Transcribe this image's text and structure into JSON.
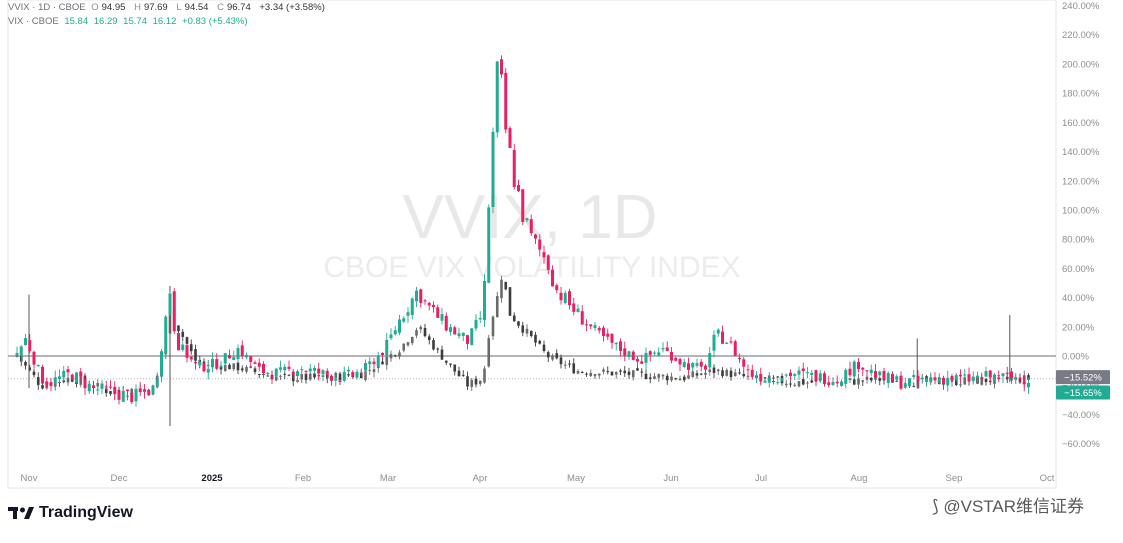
{
  "legend": {
    "vvix": {
      "name": "VVIX · 1D · CBOE",
      "o_label": "O",
      "o": "94.95",
      "h_label": "H",
      "h": "97.69",
      "l_label": "L",
      "l": "94.54",
      "c_label": "C",
      "c": "96.74",
      "change": "+3.34 (+3.58%)"
    },
    "vix": {
      "name": "VIX · CBOE",
      "o": "15.84",
      "h": "16.29",
      "l": "15.74",
      "c": "16.12",
      "change": "+0.83 (+5.43%)"
    }
  },
  "watermark": {
    "symbol": "VVIX, 1D",
    "description": "CBOE VIX VOLATILITY INDEX"
  },
  "price_tags": {
    "vvix": "−15.52%",
    "vix": "−15.65%"
  },
  "brand": {
    "name": "TradingView"
  },
  "social_handle": "@VSTAR维信证券",
  "colors": {
    "up": "#22ab94",
    "down": "#e91e63",
    "vix_up": "#6a6a6a",
    "vix_down": "#3c3c3c",
    "tag_vvix": "#787b86",
    "tag_vix": "#22ab94",
    "zero_line": "#888888"
  },
  "chart_data": {
    "type": "candlestick",
    "y_axis": {
      "unit": "%",
      "range": [
        -75,
        245
      ],
      "ticks": [
        "240.00%",
        "220.00%",
        "200.00%",
        "180.00%",
        "160.00%",
        "140.00%",
        "120.00%",
        "100.00%",
        "80.00%",
        "60.00%",
        "40.00%",
        "20.00%",
        "0.00%",
        "−20.00%",
        "−40.00%",
        "−60.00%"
      ]
    },
    "x_axis": {
      "labels": [
        "Nov",
        "Dec",
        "2025",
        "Feb",
        "Mar",
        "Apr",
        "May",
        "Jun",
        "Jul",
        "Aug",
        "Sep",
        "Oct"
      ]
    },
    "series": [
      {
        "name": "VVIX",
        "style": "pink/green candles",
        "close_points": [
          [
            "Oct 28",
            2
          ],
          [
            "Oct 31",
            12
          ],
          [
            "Nov 5",
            -15
          ],
          [
            "Nov 8",
            -18
          ],
          [
            "Nov 15",
            -12
          ],
          [
            "Nov 22",
            -22
          ],
          [
            "Nov 29",
            -25
          ],
          [
            "Dec 6",
            -28
          ],
          [
            "Dec 13",
            -22
          ],
          [
            "Dec 18",
            45
          ],
          [
            "Dec 20",
            10
          ],
          [
            "Dec 27",
            -8
          ],
          [
            "Jan 3",
            -5
          ],
          [
            "Jan 10",
            5
          ],
          [
            "Jan 17",
            -10
          ],
          [
            "Jan 24",
            -12
          ],
          [
            "Jan 31",
            -8
          ],
          [
            "Feb 7",
            -12
          ],
          [
            "Feb 14",
            -15
          ],
          [
            "Feb 21",
            -10
          ],
          [
            "Feb 28",
            5
          ],
          [
            "Mar 5",
            25
          ],
          [
            "Mar 11",
            45
          ],
          [
            "Mar 14",
            35
          ],
          [
            "Mar 21",
            20
          ],
          [
            "Mar 28",
            10
          ],
          [
            "Apr 2",
            30
          ],
          [
            "Apr 4",
            115
          ],
          [
            "Apr 7",
            210
          ],
          [
            "Apr 8",
            170
          ],
          [
            "Apr 10",
            140
          ],
          [
            "Apr 14",
            100
          ],
          [
            "Apr 17",
            80
          ],
          [
            "Apr 22",
            65
          ],
          [
            "Apr 25",
            45
          ],
          [
            "May 1",
            30
          ],
          [
            "May 8",
            15
          ],
          [
            "May 15",
            5
          ],
          [
            "May 22",
            -3
          ],
          [
            "May 29",
            5
          ],
          [
            "Jun 5",
            -5
          ],
          [
            "Jun 12",
            -10
          ],
          [
            "Jun 16",
            15
          ],
          [
            "Jun 20",
            10
          ],
          [
            "Jun 27",
            -12
          ],
          [
            "Jul 3",
            -15
          ],
          [
            "Jul 11",
            -12
          ],
          [
            "Jul 18",
            -14
          ],
          [
            "Jul 25",
            -16
          ],
          [
            "Aug 1",
            -5
          ],
          [
            "Aug 8",
            -15
          ],
          [
            "Aug 15",
            -18
          ],
          [
            "Aug 22",
            -17
          ],
          [
            "Aug 29",
            -15
          ],
          [
            "Sep 5",
            -16
          ],
          [
            "Sep 12",
            -14
          ],
          [
            "Sep 19",
            -15
          ],
          [
            "Sep 26",
            -15.52
          ]
        ]
      },
      {
        "name": "VIX",
        "style": "grey candles",
        "close_points": [
          [
            "Oct 28",
            0
          ],
          [
            "Nov 5",
            -20
          ],
          [
            "Nov 15",
            -15
          ],
          [
            "Nov 29",
            -25
          ],
          [
            "Dec 13",
            -22
          ],
          [
            "Dec 18",
            30
          ],
          [
            "Dec 27",
            -5
          ],
          [
            "Jan 10",
            -8
          ],
          [
            "Jan 24",
            -15
          ],
          [
            "Feb 7",
            -15
          ],
          [
            "Feb 21",
            -12
          ],
          [
            "Mar 5",
            5
          ],
          [
            "Mar 11",
            20
          ],
          [
            "Mar 21",
            -5
          ],
          [
            "Mar 28",
            -20
          ],
          [
            "Apr 2",
            -15
          ],
          [
            "Apr 4",
            20
          ],
          [
            "Apr 7",
            45
          ],
          [
            "Apr 8",
            60
          ],
          [
            "Apr 10",
            30
          ],
          [
            "Apr 14",
            20
          ],
          [
            "Apr 22",
            0
          ],
          [
            "May 1",
            -10
          ],
          [
            "May 15",
            -12
          ],
          [
            "Jun 5",
            -15
          ],
          [
            "Jun 16",
            -10
          ],
          [
            "Jun 27",
            -15
          ],
          [
            "Jul 11",
            -18
          ],
          [
            "Jul 25",
            -18
          ],
          [
            "Aug 8",
            -16
          ],
          [
            "Aug 22",
            -18
          ],
          [
            "Sep 5",
            -17
          ],
          [
            "Sep 19",
            -16
          ],
          [
            "Sep 26",
            -15.65
          ]
        ]
      }
    ]
  }
}
